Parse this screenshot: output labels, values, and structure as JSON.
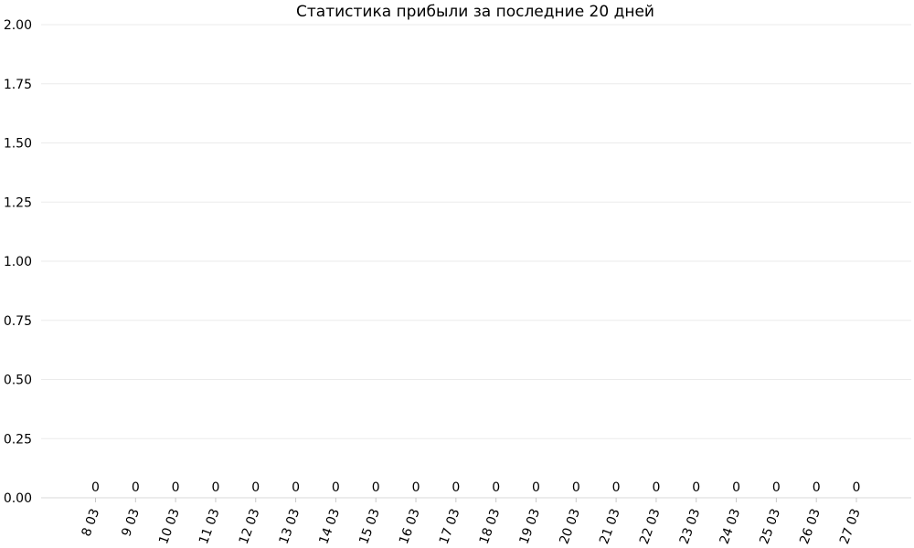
{
  "chart_data": {
    "type": "bar",
    "title": "Статистика прибыли за последние 20 дней",
    "xlabel": "",
    "ylabel": "",
    "categories": [
      "8 03",
      "9 03",
      "10 03",
      "11 03",
      "12 03",
      "13 03",
      "14 03",
      "15 03",
      "16 03",
      "17 03",
      "18 03",
      "19 03",
      "20 03",
      "21 03",
      "22 03",
      "23 03",
      "24 03",
      "25 03",
      "26 03",
      "27 03"
    ],
    "values": [
      0,
      0,
      0,
      0,
      0,
      0,
      0,
      0,
      0,
      0,
      0,
      0,
      0,
      0,
      0,
      0,
      0,
      0,
      0,
      0
    ],
    "data_labels": [
      "0",
      "0",
      "0",
      "0",
      "0",
      "0",
      "0",
      "0",
      "0",
      "0",
      "0",
      "0",
      "0",
      "0",
      "0",
      "0",
      "0",
      "0",
      "0",
      "0"
    ],
    "ylim": [
      0,
      2
    ],
    "y_ticks": [
      "0.00",
      "0.25",
      "0.50",
      "0.75",
      "1.00",
      "1.25",
      "1.50",
      "1.75",
      "2.00"
    ],
    "grid": true,
    "legend": "none"
  }
}
